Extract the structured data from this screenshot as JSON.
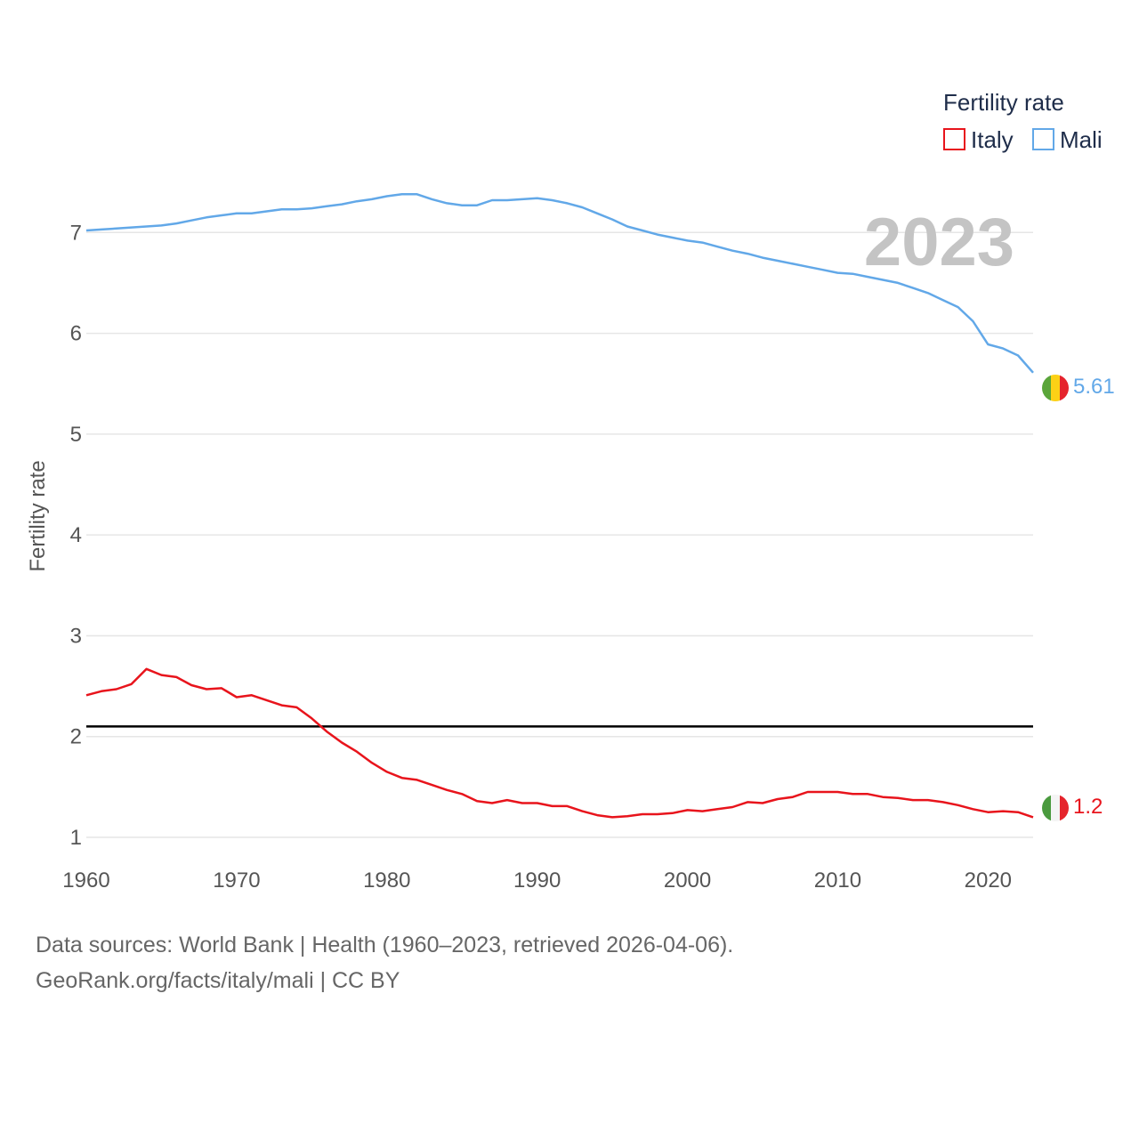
{
  "chart_data": {
    "type": "line",
    "ylabel": "Fertility rate",
    "legend_title": "Fertility rate",
    "legend_position": "top-right",
    "current_year": "2023",
    "xlim": [
      1960,
      2023
    ],
    "ylim": [
      0.7,
      7.7
    ],
    "y_ticks": [
      "1",
      "2",
      "3",
      "4",
      "5",
      "6",
      "7"
    ],
    "x_ticks": [
      "1960",
      "1970",
      "1980",
      "1990",
      "2000",
      "2010",
      "2020"
    ],
    "reference_line": 2.1,
    "x": [
      1960,
      1961,
      1962,
      1963,
      1964,
      1965,
      1966,
      1967,
      1968,
      1969,
      1970,
      1971,
      1972,
      1973,
      1974,
      1975,
      1976,
      1977,
      1978,
      1979,
      1980,
      1981,
      1982,
      1983,
      1984,
      1985,
      1986,
      1987,
      1988,
      1989,
      1990,
      1991,
      1992,
      1993,
      1994,
      1995,
      1996,
      1997,
      1998,
      1999,
      2000,
      2001,
      2002,
      2003,
      2004,
      2005,
      2006,
      2007,
      2008,
      2009,
      2010,
      2011,
      2012,
      2013,
      2014,
      2015,
      2016,
      2017,
      2018,
      2019,
      2020,
      2021,
      2022,
      2023
    ],
    "series": [
      {
        "name": "Italy",
        "color": "#e8141c",
        "end_label": "1.2",
        "flag": "italy",
        "values": [
          2.41,
          2.45,
          2.47,
          2.52,
          2.67,
          2.61,
          2.59,
          2.51,
          2.47,
          2.48,
          2.39,
          2.41,
          2.36,
          2.31,
          2.29,
          2.18,
          2.05,
          1.94,
          1.85,
          1.74,
          1.65,
          1.59,
          1.57,
          1.52,
          1.47,
          1.43,
          1.36,
          1.34,
          1.37,
          1.34,
          1.34,
          1.31,
          1.31,
          1.26,
          1.22,
          1.2,
          1.21,
          1.23,
          1.23,
          1.24,
          1.27,
          1.26,
          1.28,
          1.3,
          1.35,
          1.34,
          1.38,
          1.4,
          1.45,
          1.45,
          1.45,
          1.43,
          1.43,
          1.4,
          1.39,
          1.37,
          1.37,
          1.35,
          1.32,
          1.28,
          1.25,
          1.26,
          1.25,
          1.2
        ]
      },
      {
        "name": "Mali",
        "color": "#62a8e8",
        "end_label": "5.61",
        "flag": "mali",
        "values": [
          7.02,
          7.03,
          7.04,
          7.05,
          7.06,
          7.07,
          7.09,
          7.12,
          7.15,
          7.17,
          7.19,
          7.19,
          7.21,
          7.23,
          7.23,
          7.24,
          7.26,
          7.28,
          7.31,
          7.33,
          7.36,
          7.38,
          7.38,
          7.33,
          7.29,
          7.27,
          7.27,
          7.32,
          7.32,
          7.33,
          7.34,
          7.32,
          7.29,
          7.25,
          7.19,
          7.13,
          7.06,
          7.02,
          6.98,
          6.95,
          6.92,
          6.9,
          6.86,
          6.82,
          6.79,
          6.75,
          6.72,
          6.69,
          6.66,
          6.63,
          6.6,
          6.59,
          6.56,
          6.53,
          6.5,
          6.45,
          6.4,
          6.33,
          6.26,
          6.12,
          5.89,
          5.85,
          5.78,
          5.61
        ]
      }
    ]
  },
  "footer": {
    "line1": "Data sources: World Bank | Health (1960–2023, retrieved 2026-04-06).",
    "line2": "GeoRank.org/facts/italy/mali | CC BY"
  }
}
